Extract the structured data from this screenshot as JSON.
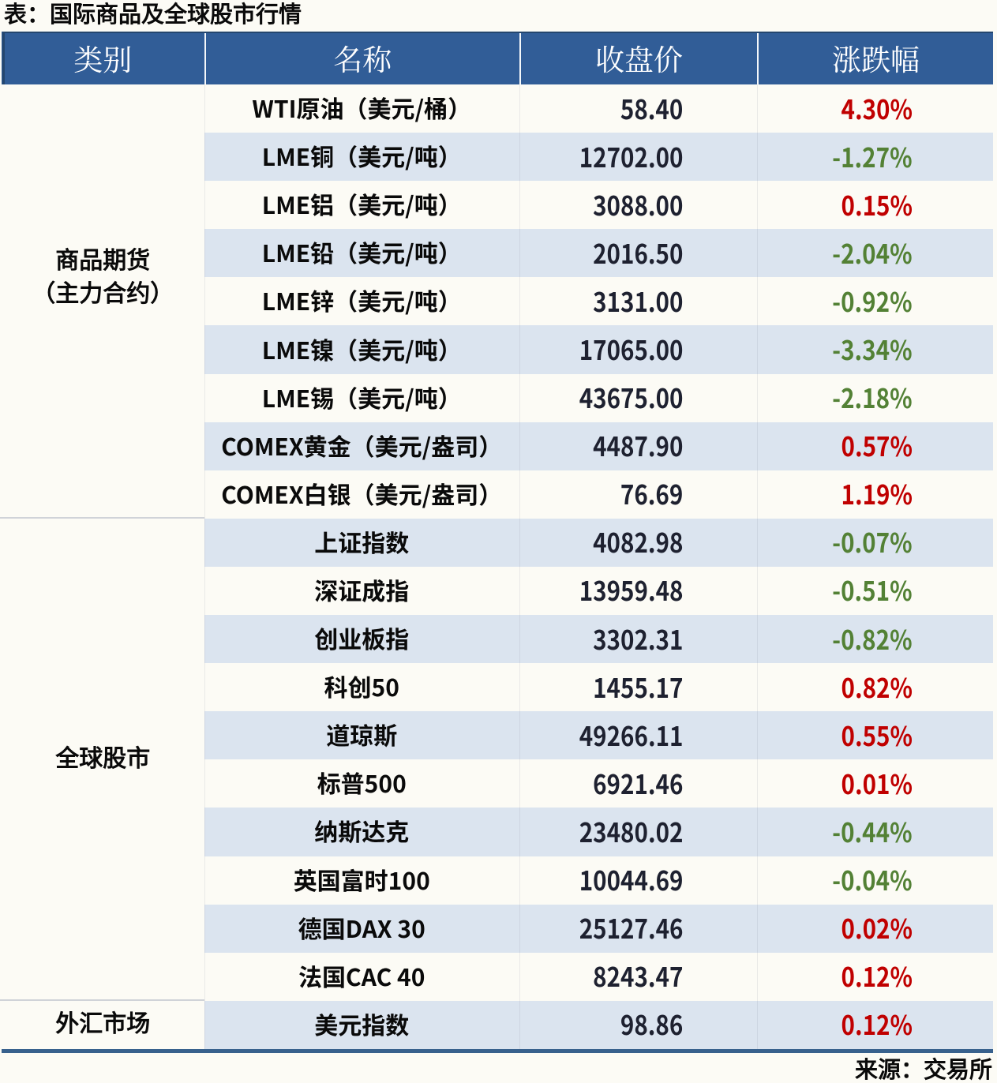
{
  "title": "表：国际商品及全球股市行情",
  "source_note": "来源：交易所",
  "colors": {
    "header_background": "#315D97",
    "stripe_background": "#DBE4EF",
    "up_red": "#C00000",
    "down_green": "#538135",
    "bottom_border_blue": "#38618D"
  },
  "table": {
    "headers": [
      "类别",
      "名称",
      "收盘价",
      "涨跌幅"
    ],
    "sections": [
      {
        "category_lines": [
          "商品期货",
          "（主力合约）"
        ],
        "rows": [
          {
            "name": "WTI原油（美元/桶）",
            "close": "58.40",
            "change": "4.30%",
            "direction": "up"
          },
          {
            "name": "LME铜（美元/吨）",
            "close": "12702.00",
            "change": "-1.27%",
            "direction": "down"
          },
          {
            "name": "LME铝（美元/吨）",
            "close": "3088.00",
            "change": "0.15%",
            "direction": "up"
          },
          {
            "name": "LME铅（美元/吨）",
            "close": "2016.50",
            "change": "-2.04%",
            "direction": "down"
          },
          {
            "name": "LME锌（美元/吨）",
            "close": "3131.00",
            "change": "-0.92%",
            "direction": "down"
          },
          {
            "name": "LME镍（美元/吨）",
            "close": "17065.00",
            "change": "-3.34%",
            "direction": "down"
          },
          {
            "name": "LME锡（美元/吨）",
            "close": "43675.00",
            "change": "-2.18%",
            "direction": "down"
          },
          {
            "name": "COMEX黄金（美元/盎司）",
            "close": "4487.90",
            "change": "0.57%",
            "direction": "up"
          },
          {
            "name": "COMEX白银（美元/盎司）",
            "close": "76.69",
            "change": "1.19%",
            "direction": "up"
          }
        ]
      },
      {
        "category_lines": [
          "全球股市"
        ],
        "rows": [
          {
            "name": "上证指数",
            "close": "4082.98",
            "change": "-0.07%",
            "direction": "down"
          },
          {
            "name": "深证成指",
            "close": "13959.48",
            "change": "-0.51%",
            "direction": "down"
          },
          {
            "name": "创业板指",
            "close": "3302.31",
            "change": "-0.82%",
            "direction": "down"
          },
          {
            "name": "科创50",
            "close": "1455.17",
            "change": "0.82%",
            "direction": "up"
          },
          {
            "name": "道琼斯",
            "close": "49266.11",
            "change": "0.55%",
            "direction": "up"
          },
          {
            "name": "标普500",
            "close": "6921.46",
            "change": "0.01%",
            "direction": "up"
          },
          {
            "name": "纳斯达克",
            "close": "23480.02",
            "change": "-0.44%",
            "direction": "down"
          },
          {
            "name": "英国富时100",
            "close": "10044.69",
            "change": "-0.04%",
            "direction": "down"
          },
          {
            "name": "德国DAX 30",
            "close": "25127.46",
            "change": "0.02%",
            "direction": "up"
          },
          {
            "name": "法国CAC 40",
            "close": "8243.47",
            "change": "0.12%",
            "direction": "up"
          }
        ]
      },
      {
        "category_lines": [
          "外汇市场"
        ],
        "rows": [
          {
            "name": "美元指数",
            "close": "98.86",
            "change": "0.12%",
            "direction": "up"
          }
        ]
      }
    ]
  }
}
